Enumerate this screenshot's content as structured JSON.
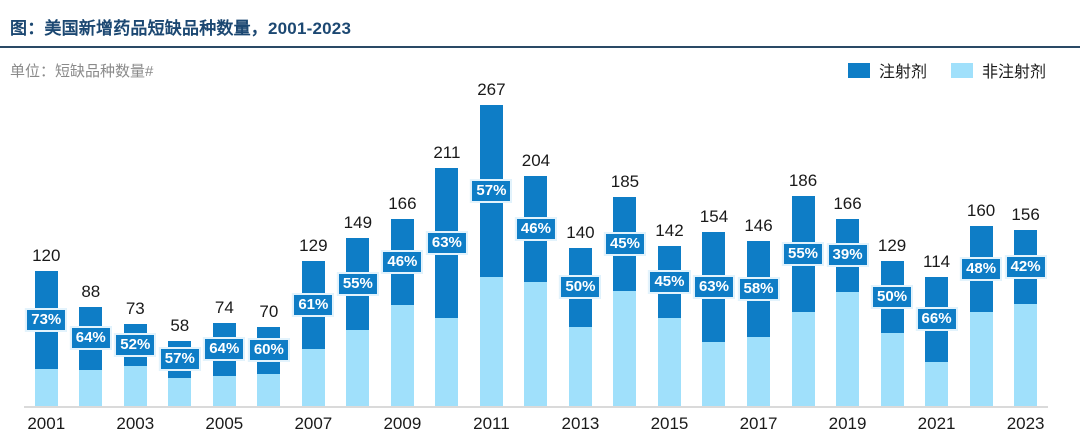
{
  "header": {
    "title": "图：美国新增药品短缺品种数量，2001-2023"
  },
  "meta": {
    "unit_label": "单位：短缺品种数量#"
  },
  "colors": {
    "title": "#1C4872",
    "injectable": "#0E7DC6",
    "non_injectable": "#A0E0FB",
    "chip_border": "#E3F3FC",
    "axis_line": "#DADADA"
  },
  "chart_data": {
    "type": "bar",
    "stacked": true,
    "title": "图：美国新增药品短缺品种数量，2001-2023",
    "unit": "短缺品种数量#",
    "grid": false,
    "legend_position": "top-right",
    "ylim": [
      0,
      280
    ],
    "legend": [
      {
        "label": "注射剂",
        "color": "#0E7DC6"
      },
      {
        "label": "非注射剂",
        "color": "#A0E0FB"
      }
    ],
    "categories": [
      "2001",
      "2002",
      "2003",
      "2004",
      "2005",
      "2006",
      "2007",
      "2008",
      "2009",
      "2010",
      "2011",
      "2012",
      "2013",
      "2014",
      "2015",
      "2016",
      "2017",
      "2018",
      "2019",
      "2020",
      "2021",
      "2022",
      "2023"
    ],
    "x_tick_labels_shown": [
      "2001",
      "2003",
      "2005",
      "2007",
      "2009",
      "2011",
      "2013",
      "2015",
      "2017",
      "2019",
      "2021",
      "2023"
    ],
    "bars": [
      {
        "year": "2001",
        "total": 120,
        "injectable_pct_label": "73%"
      },
      {
        "year": "2002",
        "total": 88,
        "injectable_pct_label": "64%"
      },
      {
        "year": "2003",
        "total": 73,
        "injectable_pct_label": "52%"
      },
      {
        "year": "2004",
        "total": 58,
        "injectable_pct_label": "57%"
      },
      {
        "year": "2005",
        "total": 74,
        "injectable_pct_label": "64%"
      },
      {
        "year": "2006",
        "total": 70,
        "injectable_pct_label": "60%"
      },
      {
        "year": "2007",
        "total": 129,
        "injectable_pct_label": "61%"
      },
      {
        "year": "2008",
        "total": 149,
        "injectable_pct_label": "55%"
      },
      {
        "year": "2009",
        "total": 166,
        "injectable_pct_label": "46%"
      },
      {
        "year": "2010",
        "total": 211,
        "injectable_pct_label": "63%"
      },
      {
        "year": "2011",
        "total": 267,
        "injectable_pct_label": "57%"
      },
      {
        "year": "2012",
        "total": 204,
        "injectable_pct_label": "46%"
      },
      {
        "year": "2013",
        "total": 140,
        "injectable_pct_label": "50%"
      },
      {
        "year": "2014",
        "total": 185,
        "injectable_pct_label": "45%"
      },
      {
        "year": "2015",
        "total": 142,
        "injectable_pct_label": "45%"
      },
      {
        "year": "2016",
        "total": 154,
        "injectable_pct_label": "63%"
      },
      {
        "year": "2017",
        "total": 146,
        "injectable_pct_label": "58%"
      },
      {
        "year": "2018",
        "total": 186,
        "injectable_pct_label": "55%"
      },
      {
        "year": "2019",
        "total": 166,
        "injectable_pct_label": "39%"
      },
      {
        "year": "2020",
        "total": 129,
        "injectable_pct_label": "50%"
      },
      {
        "year": "2021",
        "total": 114,
        "injectable_pct_label": "66%"
      },
      {
        "year": "2022",
        "total": 160,
        "injectable_pct_label": "48%"
      },
      {
        "year": "2023",
        "total": 156,
        "injectable_pct_label": "42%"
      }
    ]
  }
}
